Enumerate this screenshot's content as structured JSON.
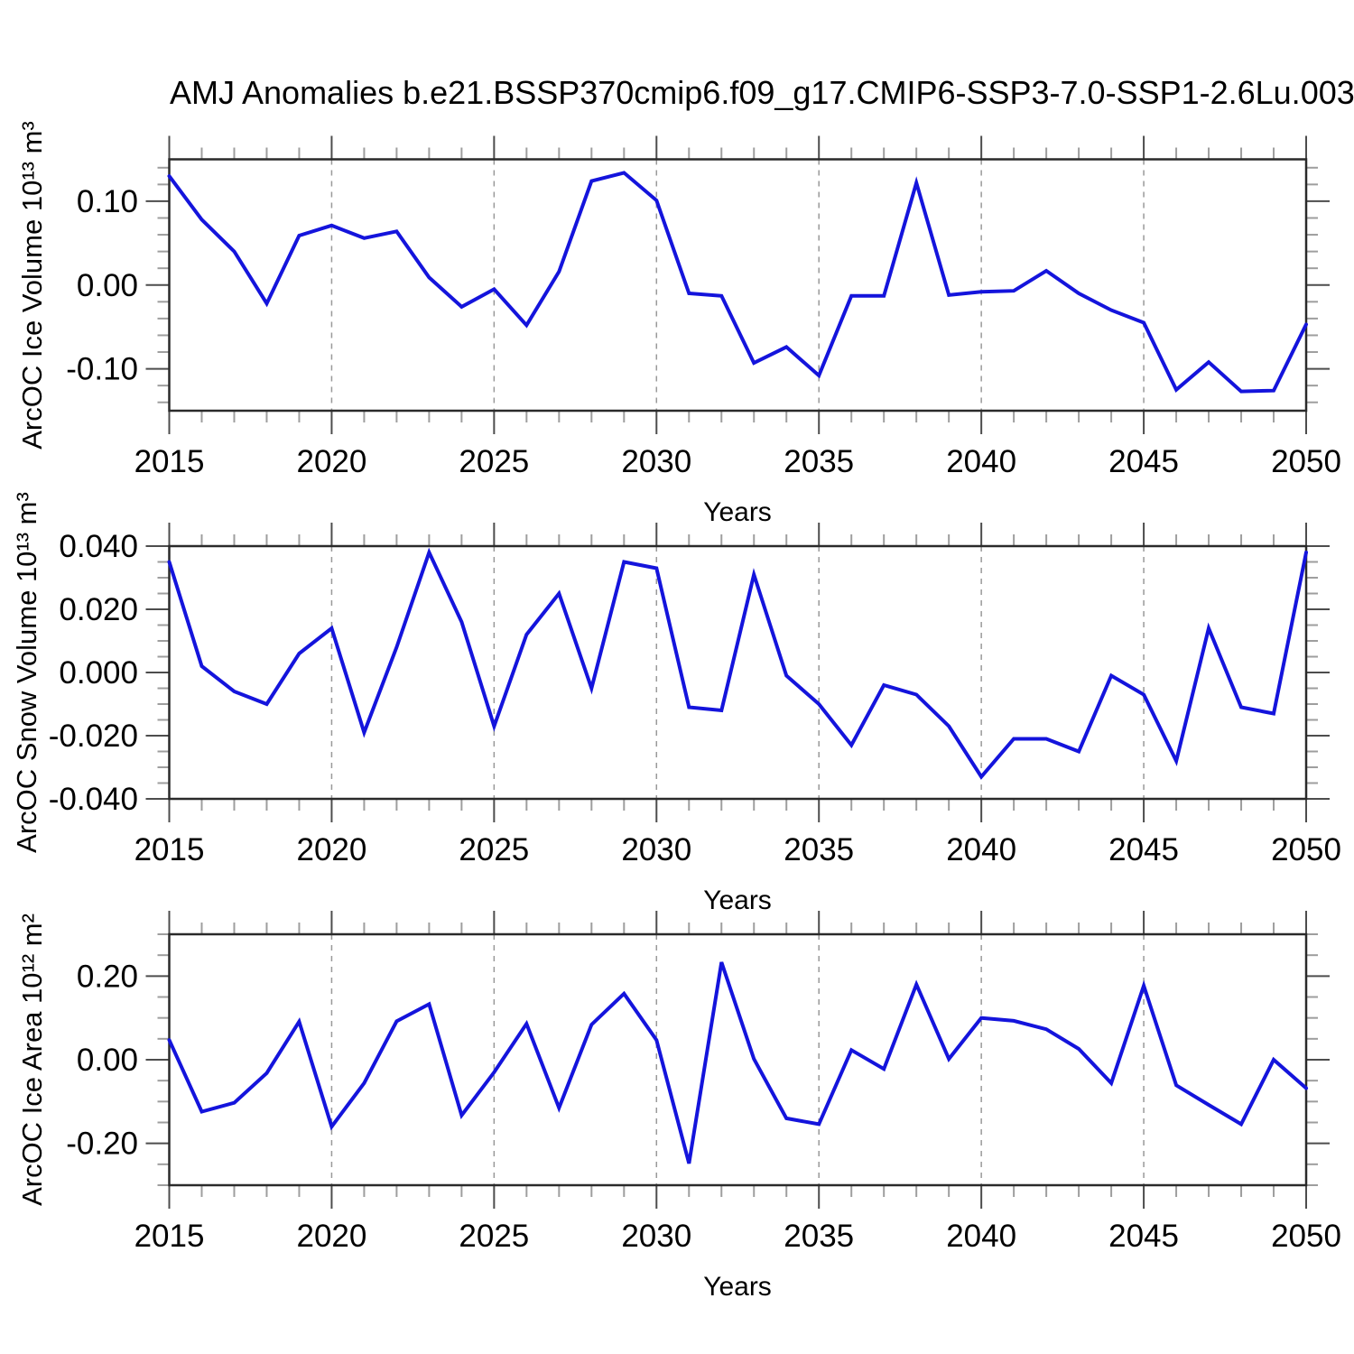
{
  "title": "AMJ Anomalies b.e21.BSSP370cmip6.f09_g17.CMIP6-SSP3-7.0-SSP1-2.6Lu.003",
  "colors": {
    "line": "#1414dc",
    "grid": "#999999",
    "frame": "#2a2a2a",
    "tick_major": "#4d4d4d",
    "tick_minor": "#9e9e9e",
    "text": "#000000",
    "background": "#ffffff"
  },
  "chart_data": [
    {
      "type": "line",
      "series_name": "AMJ Arctic Ocean ice volume anomaly",
      "ylabel": "ArcOC Ice Volume 10¹³ m³",
      "xlabel": "Years",
      "ylim": [
        -0.15,
        0.15
      ],
      "xlim": [
        2015,
        2050
      ],
      "y_minor_step": 0.02,
      "grid": "vertical-dashed",
      "grid_x": [
        2020,
        2025,
        2030,
        2035,
        2040,
        2045
      ],
      "legend_position": "none",
      "yticks": {
        "values": [
          0.1,
          0.0,
          -0.1
        ],
        "labels": [
          "0.10",
          "0.00",
          "-0.10"
        ]
      },
      "xticks": {
        "values": [
          2015,
          2020,
          2025,
          2030,
          2035,
          2040,
          2045,
          2050
        ],
        "labels": [
          "2015",
          "2020",
          "2025",
          "2030",
          "2035",
          "2040",
          "2045",
          "2050"
        ]
      },
      "x": [
        2015,
        2016,
        2017,
        2018,
        2019,
        2020,
        2021,
        2022,
        2023,
        2024,
        2025,
        2026,
        2027,
        2028,
        2029,
        2030,
        2031,
        2032,
        2033,
        2034,
        2035,
        2036,
        2037,
        2038,
        2039,
        2040,
        2041,
        2042,
        2043,
        2044,
        2045,
        2046,
        2047,
        2048,
        2049,
        2050
      ],
      "values": [
        0.13,
        0.078,
        0.04,
        -0.022,
        0.059,
        0.071,
        0.056,
        0.064,
        0.009,
        -0.026,
        -0.005,
        -0.048,
        0.016,
        0.124,
        0.134,
        0.101,
        -0.01,
        -0.013,
        -0.093,
        -0.074,
        -0.108,
        -0.013,
        -0.013,
        0.122,
        -0.012,
        -0.008,
        -0.007,
        0.017,
        -0.01,
        -0.03,
        -0.045,
        -0.125,
        -0.092,
        -0.127,
        -0.126,
        -0.047
      ]
    },
    {
      "type": "line",
      "series_name": "AMJ Arctic Ocean snow volume anomaly",
      "ylabel": "ArcOC Snow Volume 10¹³ m³",
      "xlabel": "Years",
      "ylim": [
        -0.04,
        0.04
      ],
      "xlim": [
        2015,
        2050
      ],
      "y_minor_step": 0.005,
      "grid": "vertical-dashed",
      "grid_x": [
        2020,
        2025,
        2030,
        2035,
        2040,
        2045
      ],
      "legend_position": "none",
      "yticks": {
        "values": [
          0.04,
          0.02,
          0.0,
          -0.02,
          -0.04
        ],
        "labels": [
          "0.040",
          "0.020",
          "0.000",
          "-0.020",
          "-0.040"
        ]
      },
      "xticks": {
        "values": [
          2015,
          2020,
          2025,
          2030,
          2035,
          2040,
          2045,
          2050
        ],
        "labels": [
          "2015",
          "2020",
          "2025",
          "2030",
          "2035",
          "2040",
          "2045",
          "2050"
        ]
      },
      "x": [
        2015,
        2016,
        2017,
        2018,
        2019,
        2020,
        2021,
        2022,
        2023,
        2024,
        2025,
        2026,
        2027,
        2028,
        2029,
        2030,
        2031,
        2032,
        2033,
        2034,
        2035,
        2036,
        2037,
        2038,
        2039,
        2040,
        2041,
        2042,
        2043,
        2044,
        2045,
        2046,
        2047,
        2048,
        2049,
        2050
      ],
      "values": [
        0.035,
        0.002,
        -0.006,
        -0.01,
        0.006,
        0.014,
        -0.019,
        0.008,
        0.038,
        0.016,
        -0.017,
        0.012,
        0.025,
        -0.005,
        0.035,
        0.033,
        -0.011,
        -0.012,
        0.031,
        -0.001,
        -0.01,
        -0.023,
        -0.004,
        -0.007,
        -0.017,
        -0.033,
        -0.021,
        -0.021,
        -0.025,
        -0.001,
        -0.007,
        -0.028,
        0.014,
        -0.011,
        -0.013,
        0.038
      ]
    },
    {
      "type": "line",
      "series_name": "AMJ Arctic Ocean ice area anomaly",
      "ylabel": "ArcOC Ice Area 10¹² m²",
      "xlabel": "Years",
      "ylim": [
        -0.3,
        0.3
      ],
      "xlim": [
        2015,
        2050
      ],
      "y_minor_step": 0.05,
      "grid": "vertical-dashed",
      "grid_x": [
        2020,
        2025,
        2030,
        2035,
        2040,
        2045
      ],
      "legend_position": "none",
      "yticks": {
        "values": [
          0.2,
          0.0,
          -0.2
        ],
        "labels": [
          "0.20",
          "0.00",
          "-0.20"
        ]
      },
      "xticks": {
        "values": [
          2015,
          2020,
          2025,
          2030,
          2035,
          2040,
          2045,
          2050
        ],
        "labels": [
          "2015",
          "2020",
          "2025",
          "2030",
          "2035",
          "2040",
          "2045",
          "2050"
        ]
      },
      "x": [
        2015,
        2016,
        2017,
        2018,
        2019,
        2020,
        2021,
        2022,
        2023,
        2024,
        2025,
        2026,
        2027,
        2028,
        2029,
        2030,
        2031,
        2032,
        2033,
        2034,
        2035,
        2036,
        2037,
        2038,
        2039,
        2040,
        2041,
        2042,
        2043,
        2044,
        2045,
        2046,
        2047,
        2048,
        2049,
        2050
      ],
      "values": [
        0.047,
        -0.124,
        -0.103,
        -0.032,
        0.091,
        -0.16,
        -0.056,
        0.092,
        0.133,
        -0.133,
        -0.03,
        0.086,
        -0.115,
        0.084,
        0.158,
        0.047,
        -0.248,
        0.233,
        0.002,
        -0.14,
        -0.154,
        0.023,
        -0.022,
        0.18,
        0.002,
        0.1,
        0.093,
        0.073,
        0.026,
        -0.056,
        0.177,
        -0.061,
        -0.108,
        -0.154,
        0.0,
        -0.068
      ]
    }
  ]
}
